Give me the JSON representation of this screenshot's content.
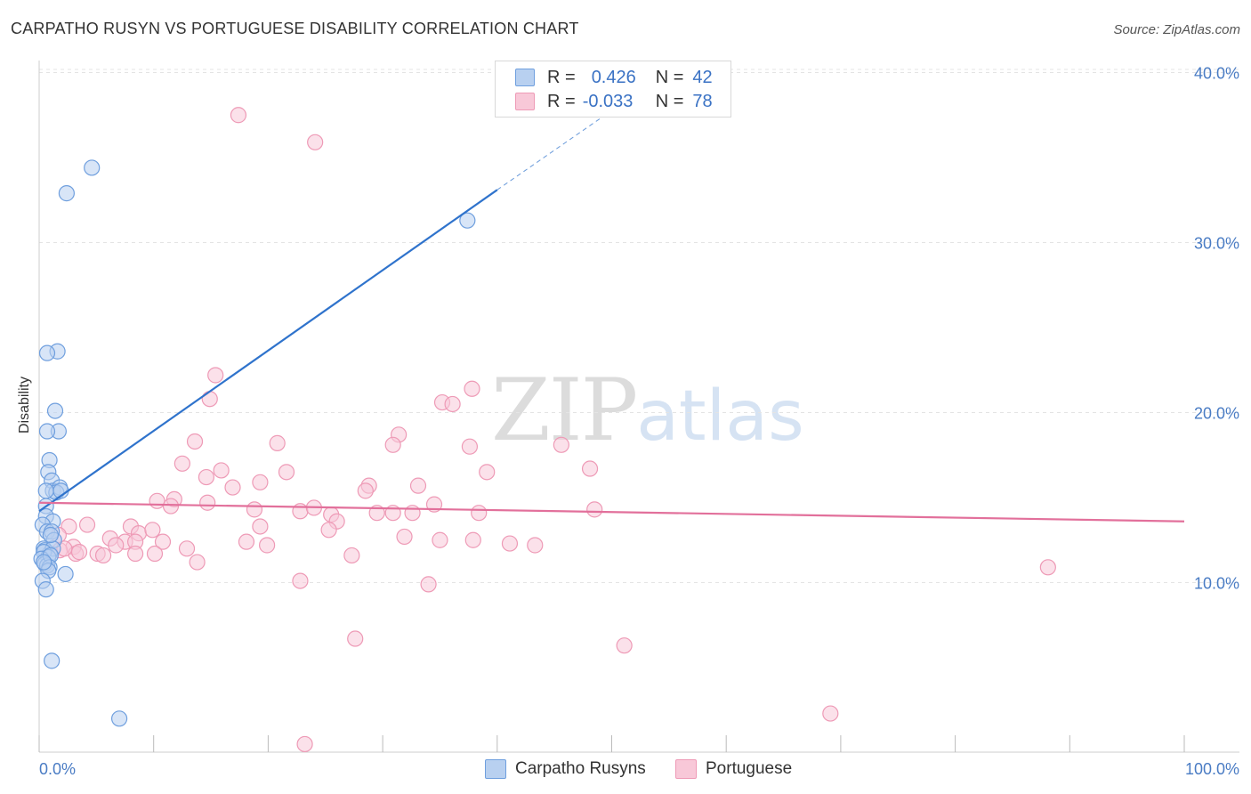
{
  "header": {
    "title": "CARPATHO RUSYN VS PORTUGUESE DISABILITY CORRELATION CHART",
    "source": "Source: ZipAtlas.com"
  },
  "watermark": {
    "zip": "ZIP",
    "atlas": "atlas"
  },
  "legend": {
    "row1": {
      "r_label": "R =",
      "r_value": "0.426",
      "n_label": "N =",
      "n_value": "42"
    },
    "row2": {
      "r_label": "R =",
      "r_value": "-0.033",
      "n_label": "N =",
      "n_value": "78"
    }
  },
  "bottom_legend": {
    "series1": "Carpatho Rusyns",
    "series2": "Portuguese"
  },
  "colors": {
    "blue_fill": "#b8d0f0",
    "blue_stroke": "#6f9fde",
    "blue_line": "#2f73cc",
    "pink_fill": "#f8c8d8",
    "pink_stroke": "#ee9ab6",
    "pink_line": "#e2709b",
    "grid": "#e4e4e4",
    "tick_text": "#4a7cc4"
  },
  "chart_data": {
    "type": "scatter",
    "title": "CARPATHO RUSYN VS PORTUGUESE DISABILITY CORRELATION CHART",
    "xlabel": "",
    "ylabel": "Disability",
    "xlim": [
      0,
      100
    ],
    "ylim": [
      0,
      42
    ],
    "x_tick_labels": [
      "0.0%",
      "100.0%"
    ],
    "y_ticks": [
      10,
      20,
      30,
      40
    ],
    "y_tick_labels": [
      "10.0%",
      "20.0%",
      "30.0%",
      "40.0%"
    ],
    "series": [
      {
        "name": "Carpatho Rusyns",
        "r": 0.426,
        "n": 42,
        "trend": {
          "x0": 0,
          "y0": 14.2,
          "x1": 40,
          "y1": 33.1,
          "dash_to_x": 52,
          "dash_to_y": 38.7
        },
        "points": [
          [
            4.6,
            34.4
          ],
          [
            2.4,
            32.9
          ],
          [
            37.4,
            31.3
          ],
          [
            1.6,
            23.6
          ],
          [
            0.7,
            23.5
          ],
          [
            1.4,
            20.1
          ],
          [
            1.7,
            18.9
          ],
          [
            0.7,
            18.9
          ],
          [
            0.9,
            17.2
          ],
          [
            0.8,
            16.5
          ],
          [
            1.1,
            16.0
          ],
          [
            1.2,
            15.4
          ],
          [
            1.8,
            15.6
          ],
          [
            1.5,
            15.3
          ],
          [
            0.6,
            15.4
          ],
          [
            1.9,
            15.4
          ],
          [
            0.6,
            14.5
          ],
          [
            0.6,
            13.9
          ],
          [
            1.2,
            13.6
          ],
          [
            0.3,
            13.4
          ],
          [
            0.7,
            13.0
          ],
          [
            1.1,
            13.0
          ],
          [
            1.3,
            12.5
          ],
          [
            0.4,
            12.0
          ],
          [
            0.9,
            11.7
          ],
          [
            0.5,
            11.9
          ],
          [
            1.2,
            12.0
          ],
          [
            0.4,
            11.8
          ],
          [
            0.8,
            11.5
          ],
          [
            0.2,
            11.4
          ],
          [
            0.5,
            11.1
          ],
          [
            0.7,
            11.0
          ],
          [
            1.0,
            11.6
          ],
          [
            0.9,
            10.9
          ],
          [
            2.3,
            10.5
          ],
          [
            0.8,
            10.7
          ],
          [
            0.3,
            10.1
          ],
          [
            0.6,
            9.6
          ],
          [
            0.4,
            11.2
          ],
          [
            1.0,
            12.8
          ],
          [
            1.1,
            5.4
          ],
          [
            7.0,
            2.0
          ]
        ]
      },
      {
        "name": "Portuguese",
        "r": -0.033,
        "n": 78,
        "trend": {
          "x0": 0,
          "y0": 14.7,
          "x1": 100,
          "y1": 13.6
        },
        "points": [
          [
            17.4,
            37.5
          ],
          [
            24.1,
            35.9
          ],
          [
            15.4,
            22.2
          ],
          [
            14.9,
            20.8
          ],
          [
            37.8,
            21.4
          ],
          [
            35.2,
            20.6
          ],
          [
            36.1,
            20.5
          ],
          [
            13.6,
            18.3
          ],
          [
            20.8,
            18.2
          ],
          [
            31.4,
            18.7
          ],
          [
            30.9,
            18.1
          ],
          [
            37.6,
            18.0
          ],
          [
            45.6,
            18.1
          ],
          [
            12.5,
            17.0
          ],
          [
            15.9,
            16.6
          ],
          [
            21.6,
            16.5
          ],
          [
            39.1,
            16.5
          ],
          [
            48.1,
            16.7
          ],
          [
            14.6,
            16.2
          ],
          [
            16.9,
            15.6
          ],
          [
            19.3,
            15.9
          ],
          [
            28.8,
            15.7
          ],
          [
            33.1,
            15.7
          ],
          [
            28.5,
            15.4
          ],
          [
            11.8,
            14.9
          ],
          [
            10.3,
            14.8
          ],
          [
            11.5,
            14.5
          ],
          [
            14.7,
            14.7
          ],
          [
            18.8,
            14.3
          ],
          [
            22.8,
            14.2
          ],
          [
            24.0,
            14.4
          ],
          [
            25.5,
            14.0
          ],
          [
            26.0,
            13.6
          ],
          [
            29.5,
            14.1
          ],
          [
            30.9,
            14.1
          ],
          [
            32.6,
            14.1
          ],
          [
            34.5,
            14.6
          ],
          [
            38.4,
            14.1
          ],
          [
            48.5,
            14.3
          ],
          [
            4.2,
            13.4
          ],
          [
            2.6,
            13.3
          ],
          [
            8.0,
            13.3
          ],
          [
            8.7,
            12.9
          ],
          [
            9.9,
            13.1
          ],
          [
            19.3,
            13.3
          ],
          [
            25.3,
            13.1
          ],
          [
            31.9,
            12.7
          ],
          [
            6.2,
            12.6
          ],
          [
            7.5,
            12.4
          ],
          [
            3.0,
            12.1
          ],
          [
            6.7,
            12.2
          ],
          [
            8.4,
            12.4
          ],
          [
            10.8,
            12.4
          ],
          [
            12.9,
            12.0
          ],
          [
            18.1,
            12.4
          ],
          [
            19.9,
            12.2
          ],
          [
            35.0,
            12.5
          ],
          [
            37.9,
            12.5
          ],
          [
            41.1,
            12.3
          ],
          [
            43.3,
            12.2
          ],
          [
            1.8,
            11.9
          ],
          [
            3.2,
            11.7
          ],
          [
            5.1,
            11.7
          ],
          [
            5.6,
            11.6
          ],
          [
            8.4,
            11.7
          ],
          [
            10.1,
            11.7
          ],
          [
            13.8,
            11.2
          ],
          [
            27.3,
            11.6
          ],
          [
            22.8,
            10.1
          ],
          [
            34.0,
            9.9
          ],
          [
            88.1,
            10.9
          ],
          [
            27.6,
            6.7
          ],
          [
            51.1,
            6.3
          ],
          [
            69.1,
            2.3
          ],
          [
            23.2,
            0.5
          ],
          [
            1.7,
            12.8
          ],
          [
            3.5,
            11.8
          ],
          [
            2.2,
            12.0
          ]
        ]
      }
    ],
    "legend_position": "top-center"
  }
}
